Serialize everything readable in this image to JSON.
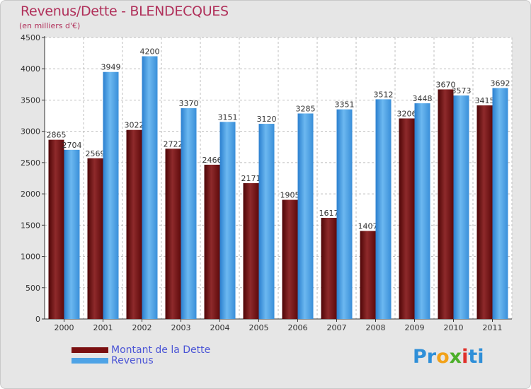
{
  "header": {
    "title": "Revenus/Dette - BLENDECQUES",
    "subtitle": "(en milliers d'€)"
  },
  "legend": {
    "items": [
      {
        "label": "Montant de la Dette",
        "color": "#7a0f10"
      },
      {
        "label": "Revenus",
        "color": "#4ea3e6"
      }
    ]
  },
  "logo": {
    "parts": [
      {
        "text": "Pr",
        "color": "#2f8fd8"
      },
      {
        "text": "o",
        "color": "#f2a21a"
      },
      {
        "text": "x",
        "color": "#4caf2a"
      },
      {
        "text": "i",
        "color": "#e0302a"
      },
      {
        "text": "ti",
        "color": "#2f8fd8"
      }
    ]
  },
  "colors": {
    "background": "#e6e6e6",
    "plot_background": "#ffffff",
    "grid": "#bdbdbd",
    "title": "#b0305a",
    "legend_text": "#4b55d6"
  },
  "chart_data": {
    "type": "bar",
    "title": "Revenus/Dette - BLENDECQUES",
    "subtitle": "(en milliers d'€)",
    "xlabel": "",
    "ylabel": "",
    "categories": [
      "2000",
      "2001",
      "2002",
      "2003",
      "2004",
      "2005",
      "2006",
      "2007",
      "2008",
      "2009",
      "2010",
      "2011"
    ],
    "series": [
      {
        "name": "Montant de la Dette",
        "color": "#7a0f10",
        "values": [
          2865,
          2569,
          3022,
          2722,
          2466,
          2171,
          1905,
          1617,
          1407,
          3206,
          3670,
          3415
        ]
      },
      {
        "name": "Revenus",
        "color": "#4ea3e6",
        "values": [
          2704,
          3949,
          4200,
          3370,
          3151,
          3120,
          3285,
          3351,
          3512,
          3448,
          3573,
          3692
        ]
      }
    ],
    "yticks": [
      0,
      500,
      1000,
      1500,
      2000,
      2500,
      3000,
      3500,
      4000,
      4500
    ],
    "ylim": [
      0,
      4500
    ],
    "grid": true,
    "legend_position": "bottom-left"
  }
}
